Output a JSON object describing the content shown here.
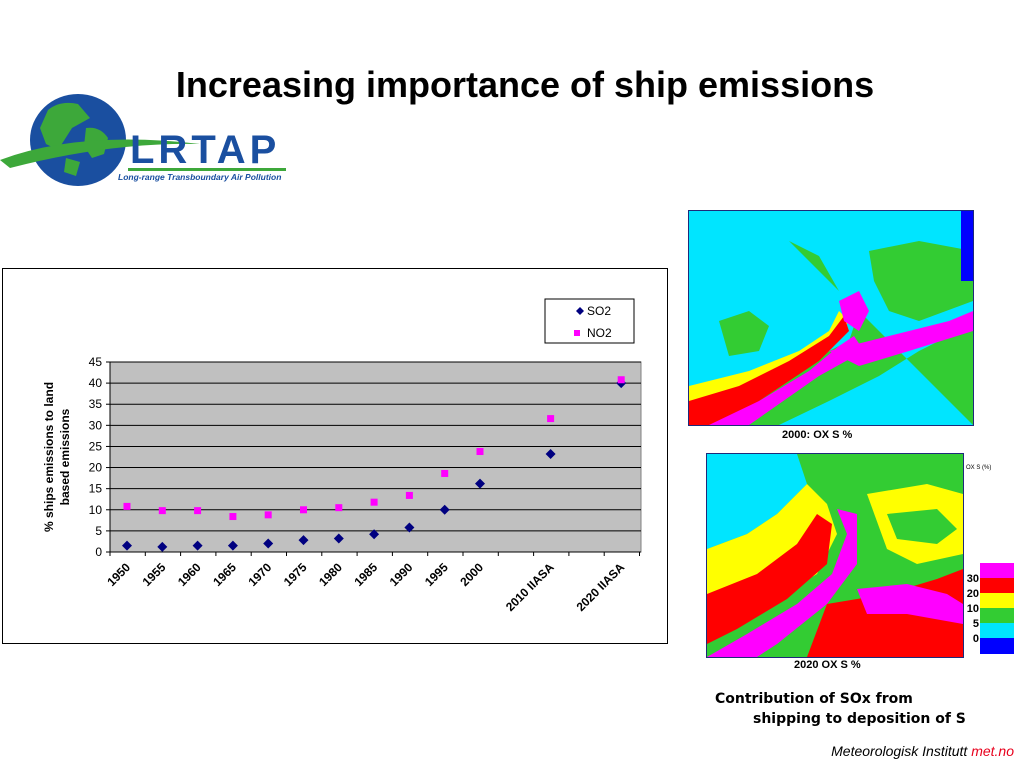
{
  "slide": {
    "title": "Increasing importance of ship emissions"
  },
  "logo": {
    "acronym": "LRTAP",
    "subtitle": "Long-range Transboundary Air Pollution"
  },
  "chart_data": {
    "type": "scatter",
    "title": "",
    "xlabel": "",
    "ylabel": "% ships emissions to land based emissions",
    "ylabel_lines": [
      "% ships emissions to land",
      "based emissions"
    ],
    "categories": [
      "1950",
      "1955",
      "1960",
      "1965",
      "1970",
      "1975",
      "1980",
      "1985",
      "1990",
      "1995",
      "2000",
      "2010 IIASA",
      "2020 IIASA"
    ],
    "ylim": [
      0,
      45
    ],
    "yticks": [
      0,
      5,
      10,
      15,
      20,
      25,
      30,
      35,
      40,
      45
    ],
    "grid": true,
    "legend_position": "top-right",
    "series": [
      {
        "name": "SO2",
        "marker": "diamond",
        "color": "#000080",
        "points": [
          {
            "x": 1950,
            "y": 1.5
          },
          {
            "x": 1955,
            "y": 1.2
          },
          {
            "x": 1960,
            "y": 1.5
          },
          {
            "x": 1965,
            "y": 1.5
          },
          {
            "x": 1970,
            "y": 2.0
          },
          {
            "x": 1975,
            "y": 2.8
          },
          {
            "x": 1980,
            "y": 3.2
          },
          {
            "x": 1985,
            "y": 4.2
          },
          {
            "x": 1990,
            "y": 5.8
          },
          {
            "x": 1995,
            "y": 10.0
          },
          {
            "x": 2000,
            "y": 16.2
          },
          {
            "x": 2010,
            "y": 23.2
          },
          {
            "x": 2020,
            "y": 40.0
          }
        ]
      },
      {
        "name": "NO2",
        "marker": "square",
        "color": "#ff00ff",
        "points": [
          {
            "x": 1950,
            "y": 10.8
          },
          {
            "x": 1955,
            "y": 9.8
          },
          {
            "x": 1960,
            "y": 9.8
          },
          {
            "x": 1965,
            "y": 8.4
          },
          {
            "x": 1970,
            "y": 8.8
          },
          {
            "x": 1975,
            "y": 10.0
          },
          {
            "x": 1980,
            "y": 10.5
          },
          {
            "x": 1985,
            "y": 11.8
          },
          {
            "x": 1990,
            "y": 13.4
          },
          {
            "x": 1995,
            "y": 18.6
          },
          {
            "x": 2000,
            "y": 23.8
          },
          {
            "x": 2010,
            "y": 31.6
          },
          {
            "x": 2020,
            "y": 40.8
          }
        ]
      }
    ]
  },
  "maps": {
    "map_2000_caption": "2000: OX S  %",
    "map_2020_caption": "2020 OX S  %",
    "legend_title": "OX S (%)",
    "scale_labels": [
      "30",
      "20",
      "10",
      "5",
      "0"
    ],
    "scale_colors": [
      "#ff00ff",
      "#ff0000",
      "#ffff00",
      "#33cc33",
      "#00e5ff",
      "#0000ff"
    ]
  },
  "caption": {
    "line1": "Contribution of SOx from",
    "line2": "shipping to deposition of S"
  },
  "footer": {
    "institute": "Meteorologisk Institutt",
    "brand": "met.no"
  }
}
